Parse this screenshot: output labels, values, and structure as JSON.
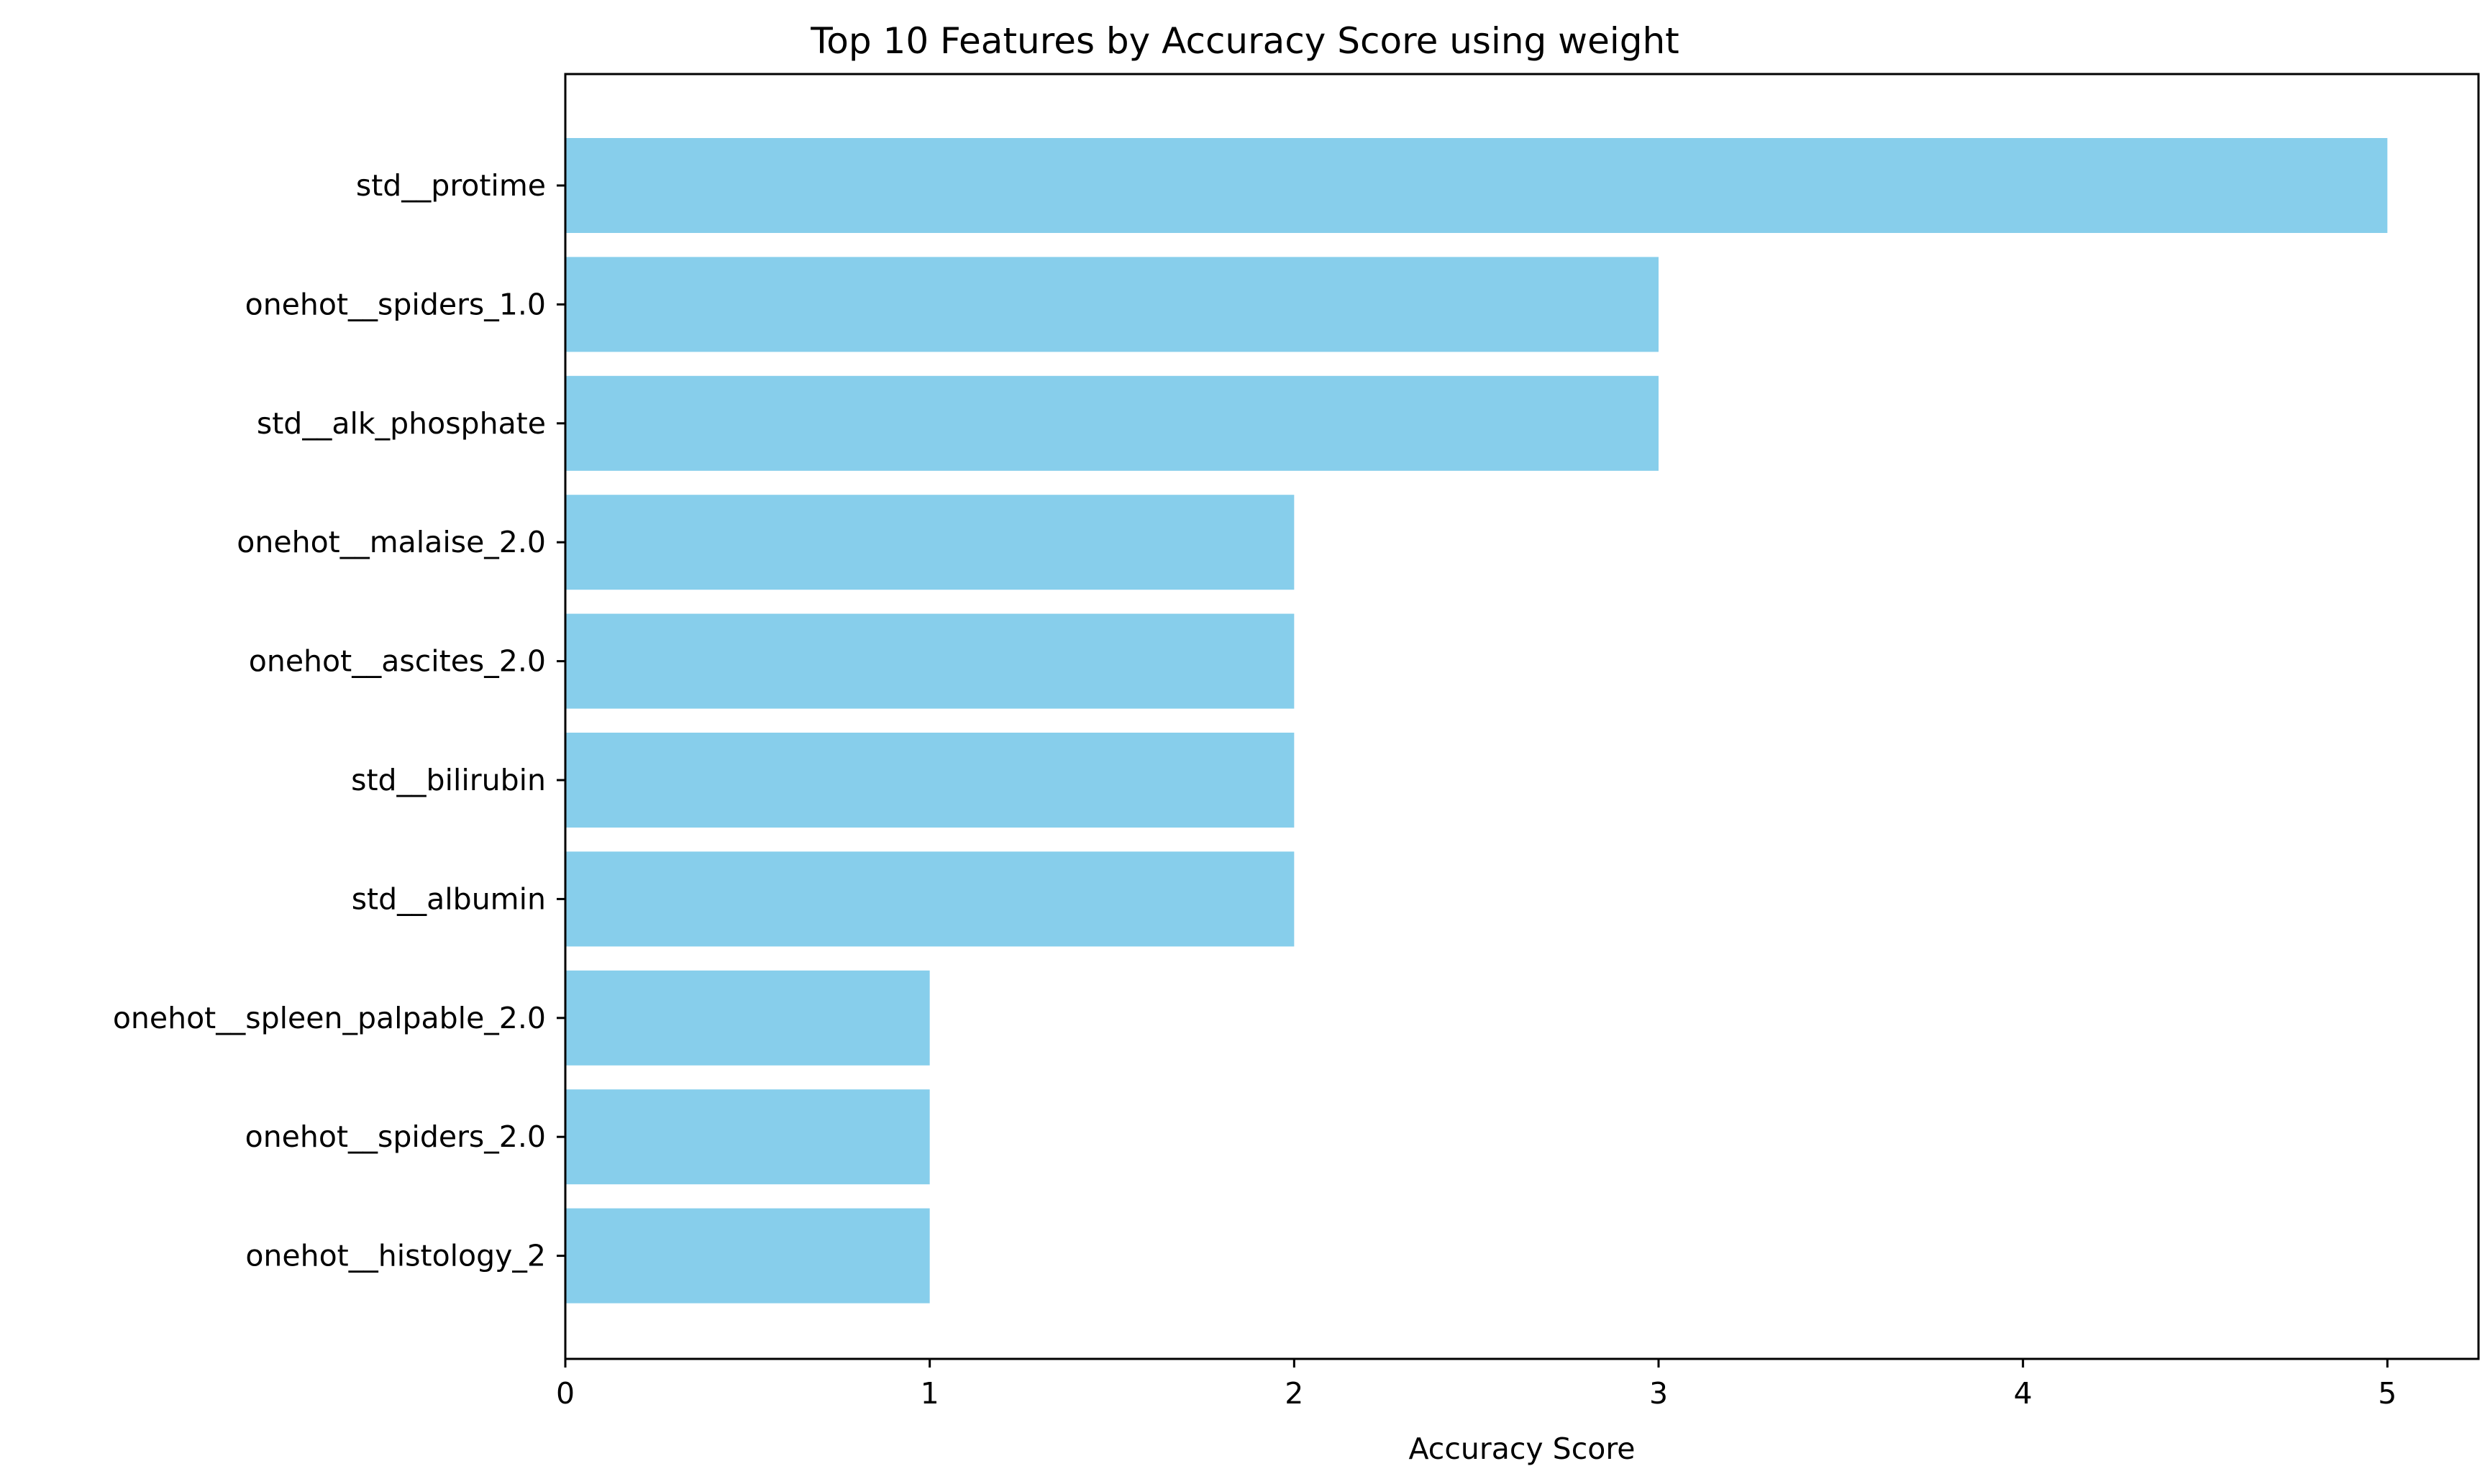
{
  "chart_data": {
    "type": "bar",
    "orientation": "horizontal",
    "title": "Top 10 Features by Accuracy Score using weight",
    "xlabel": "Accuracy Score",
    "ylabel": "",
    "categories": [
      "std__protime",
      "onehot__spiders_1.0",
      "std__alk_phosphate",
      "onehot__malaise_2.0",
      "onehot__ascites_2.0",
      "std__bilirubin",
      "std__albumin",
      "onehot__spleen_palpable_2.0",
      "onehot__spiders_2.0",
      "onehot__histology_2"
    ],
    "values": [
      5,
      3,
      3,
      2,
      2,
      2,
      2,
      1,
      1,
      1
    ],
    "xlim": [
      0,
      5.25
    ],
    "xticks": [
      0,
      1,
      2,
      3,
      4,
      5
    ],
    "xtick_labels": [
      "0",
      "1",
      "2",
      "3",
      "4",
      "5"
    ],
    "bar_color": "#87CEEB",
    "grid": false,
    "legend": "none"
  }
}
